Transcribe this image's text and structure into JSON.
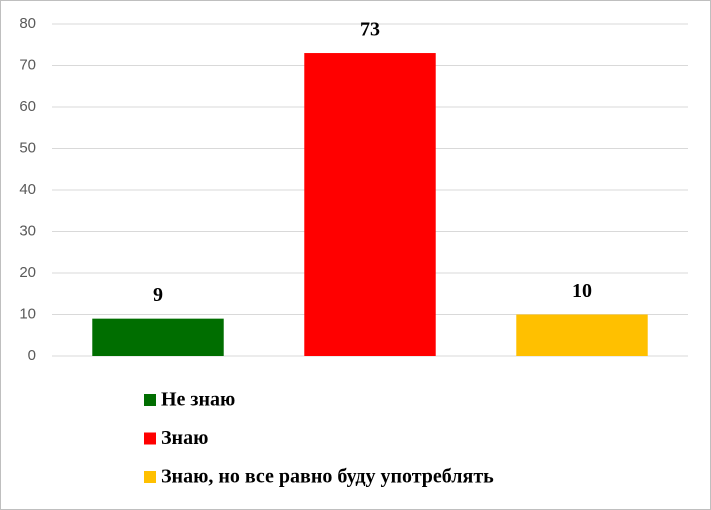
{
  "chart_data": {
    "type": "bar",
    "categories": [
      null
    ],
    "series": [
      {
        "name": "Не знаю",
        "color": "#006e00",
        "values": [
          9
        ]
      },
      {
        "name": "Знаю",
        "color": "#ff0000",
        "values": [
          73
        ]
      },
      {
        "name": "Знаю, но все равно буду употреблять",
        "color": "#ffc000",
        "values": [
          10
        ]
      }
    ],
    "ylim": [
      0,
      80
    ],
    "yticks": [
      0,
      10,
      20,
      30,
      40,
      50,
      60,
      70,
      80
    ],
    "grid": true,
    "legend": "bottom"
  }
}
